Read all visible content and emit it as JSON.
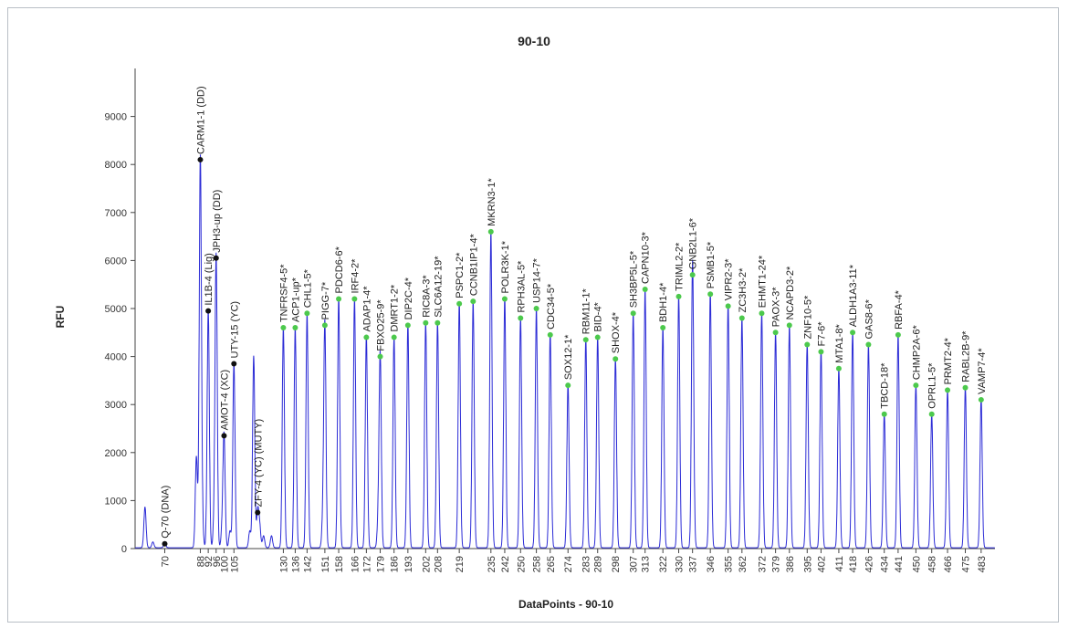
{
  "chart_data": {
    "type": "line",
    "title": "90-10",
    "xlabel": "DataPoints - 90-10",
    "ylabel": "RFU",
    "ylim": [
      0,
      10000
    ],
    "xlim": [
      55,
      490
    ],
    "y_ticks": [
      0,
      1000,
      2000,
      3000,
      4000,
      5000,
      6000,
      7000,
      8000,
      9000
    ],
    "x_ticks": [
      "70",
      "88",
      "92",
      "96",
      "100",
      "105",
      "130",
      "136",
      "142",
      "151",
      "158",
      "166",
      "172",
      "179",
      "186",
      "193",
      "202",
      "208",
      "219",
      "235",
      "242",
      "250",
      "258",
      "265",
      "274",
      "283",
      "289",
      "298",
      "307",
      "313",
      "322",
      "330",
      "337",
      "346",
      "355",
      "362",
      "372",
      "379",
      "386",
      "395",
      "402",
      "411",
      "418",
      "426",
      "434",
      "441",
      "450",
      "458",
      "466",
      "475",
      "483"
    ],
    "line_color": "#2b2bd6",
    "markers_black": [
      {
        "label": "Q-70 (DNA)",
        "x": 70,
        "y": 100
      },
      {
        "label": "CARM1-1 (DD)",
        "x": 88,
        "y": 8100
      },
      {
        "label": "IL1B-4 (Lig)",
        "x": 92,
        "y": 4950
      },
      {
        "label": "JPH3-up (DD)",
        "x": 96,
        "y": 6050
      },
      {
        "label": "AMOT-4 (XC)",
        "x": 100,
        "y": 2350
      },
      {
        "label": "UTY-15 (YC)",
        "x": 105,
        "y": 3850
      },
      {
        "label": "ZFY-4 (YC) (MUTY)",
        "x": 117,
        "y": 750
      }
    ],
    "markers_green": [
      {
        "label": "TNFRSF4-5*",
        "x": 130,
        "y": 4600
      },
      {
        "label": "ACP1-up*",
        "x": 136,
        "y": 4600
      },
      {
        "label": "CHL1-5*",
        "x": 142,
        "y": 4900
      },
      {
        "label": "PIGG-7*",
        "x": 151,
        "y": 4650
      },
      {
        "label": "PDCD6-6*",
        "x": 158,
        "y": 5200
      },
      {
        "label": "IRF4-2*",
        "x": 166,
        "y": 5200
      },
      {
        "label": "ADAP1-4*",
        "x": 172,
        "y": 4400
      },
      {
        "label": "FBXO25-9*",
        "x": 179,
        "y": 4000
      },
      {
        "label": "DMRT1-2*",
        "x": 186,
        "y": 4400
      },
      {
        "label": "DIP2C-4*",
        "x": 193,
        "y": 4650
      },
      {
        "label": "RIC8A-3*",
        "x": 202,
        "y": 4700
      },
      {
        "label": "SLC6A12-19*",
        "x": 208,
        "y": 4700
      },
      {
        "label": "PSPC1-2*",
        "x": 219,
        "y": 5100
      },
      {
        "label": "CCNB1IP1-4*",
        "x": 226,
        "y": 5150
      },
      {
        "label": "MKRN3-1*",
        "x": 235,
        "y": 6600
      },
      {
        "label": "POLR3K-1*",
        "x": 242,
        "y": 5200
      },
      {
        "label": "RPH3AL-5*",
        "x": 250,
        "y": 4800
      },
      {
        "label": "USP14-7*",
        "x": 258,
        "y": 5000
      },
      {
        "label": "CDC34-5*",
        "x": 265,
        "y": 4450
      },
      {
        "label": "SOX12-1*",
        "x": 274,
        "y": 3400
      },
      {
        "label": "RBM11-1*",
        "x": 283,
        "y": 4350
      },
      {
        "label": "BID-4*",
        "x": 289,
        "y": 4400
      },
      {
        "label": "SHOX-4*",
        "x": 298,
        "y": 3950
      },
      {
        "label": "SH3BP5L-5*",
        "x": 307,
        "y": 4900
      },
      {
        "label": "CAPN10-3*",
        "x": 313,
        "y": 5400
      },
      {
        "label": "BDH1-4*",
        "x": 322,
        "y": 4600
      },
      {
        "label": "TRIML2-2*",
        "x": 330,
        "y": 5250
      },
      {
        "label": "GNB2L1-6*",
        "x": 337,
        "y": 5700
      },
      {
        "label": "PSMB1-5*",
        "x": 346,
        "y": 5300
      },
      {
        "label": "VIPR2-3*",
        "x": 355,
        "y": 5050
      },
      {
        "label": "ZC3H3-2*",
        "x": 362,
        "y": 4800
      },
      {
        "label": "EHMT1-24*",
        "x": 372,
        "y": 4900
      },
      {
        "label": "PAOX-3*",
        "x": 379,
        "y": 4500
      },
      {
        "label": "NCAPD3-2*",
        "x": 386,
        "y": 4650
      },
      {
        "label": "ZNF10-5*",
        "x": 395,
        "y": 4250
      },
      {
        "label": "F7-6*",
        "x": 402,
        "y": 4100
      },
      {
        "label": "MTA1-8*",
        "x": 411,
        "y": 3750
      },
      {
        "label": "ALDH1A3-11*",
        "x": 418,
        "y": 4500
      },
      {
        "label": "GAS8-6*",
        "x": 426,
        "y": 4250
      },
      {
        "label": "TBCD-18*",
        "x": 434,
        "y": 2800
      },
      {
        "label": "RBFA-4*",
        "x": 441,
        "y": 4450
      },
      {
        "label": "CHMP2A-6*",
        "x": 450,
        "y": 3400
      },
      {
        "label": "OPRL1-5*",
        "x": 458,
        "y": 2800
      },
      {
        "label": "PRMT2-4*",
        "x": 466,
        "y": 3300
      },
      {
        "label": "RABL2B-9*",
        "x": 475,
        "y": 3350
      },
      {
        "label": "VAMP7-4*",
        "x": 483,
        "y": 3100
      }
    ],
    "extra_peaks": [
      {
        "x": 60,
        "y": 850
      },
      {
        "x": 64,
        "y": 120
      },
      {
        "x": 86,
        "y": 1900
      },
      {
        "x": 89,
        "y": 450
      },
      {
        "x": 95,
        "y": 500
      },
      {
        "x": 99,
        "y": 350
      },
      {
        "x": 103,
        "y": 350
      },
      {
        "x": 113,
        "y": 350
      },
      {
        "x": 115,
        "y": 4000
      },
      {
        "x": 118,
        "y": 450
      },
      {
        "x": 120,
        "y": 250
      },
      {
        "x": 124,
        "y": 250
      },
      {
        "x": 150,
        "y": 550
      },
      {
        "x": 178,
        "y": 550
      },
      {
        "x": 337.5,
        "y": 450
      }
    ],
    "grid": false,
    "legend": "none"
  }
}
